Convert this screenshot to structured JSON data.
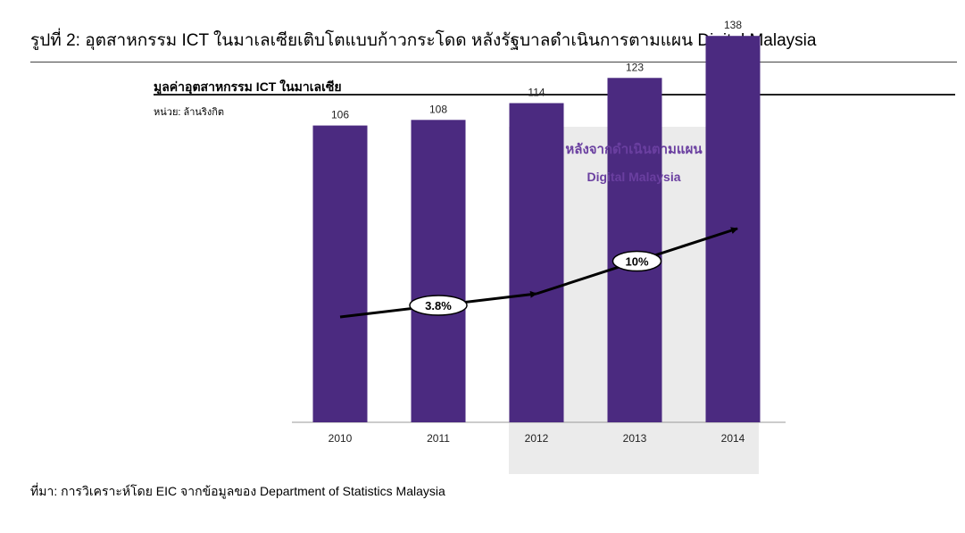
{
  "figure": {
    "title": "รูปที่ 2: อุตสาหกรรม ICT ในมาเลเซียเติบโตแบบก้าวกระโดด หลังรัฐบาลดำเนินการตามแผน Digital Malaysia",
    "source": "ที่มา: การวิเคราะห์โดย EIC จากข้อมูลของ Department of Statistics Malaysia"
  },
  "chart_data": {
    "type": "bar",
    "title": "มูลค่าอุตสาหกรรม ICT ในมาเลเซีย",
    "subtitle": "หน่วย: ล้านริงกิต",
    "categories": [
      "2010",
      "2011",
      "2012",
      "2013",
      "2014"
    ],
    "values": [
      106,
      108,
      114,
      123,
      138
    ],
    "data_labels": [
      "106",
      "108",
      "114",
      "123",
      "138"
    ],
    "ylim": [
      0,
      140
    ],
    "grid": false,
    "bar_color": "#4B2A80",
    "highlight": {
      "categories": [
        "2012",
        "2013",
        "2014"
      ],
      "label_line1": "หลังจากดำเนินตามแผน",
      "label_line2": "Digital Malaysia",
      "label_color": "#6A3FA0",
      "shade_color": "#EBEBEB"
    },
    "growth_annotations": [
      {
        "label": "3.8%",
        "from": "2010",
        "to": "2012"
      },
      {
        "label": "10%",
        "from": "2012",
        "to": "2014"
      }
    ]
  }
}
